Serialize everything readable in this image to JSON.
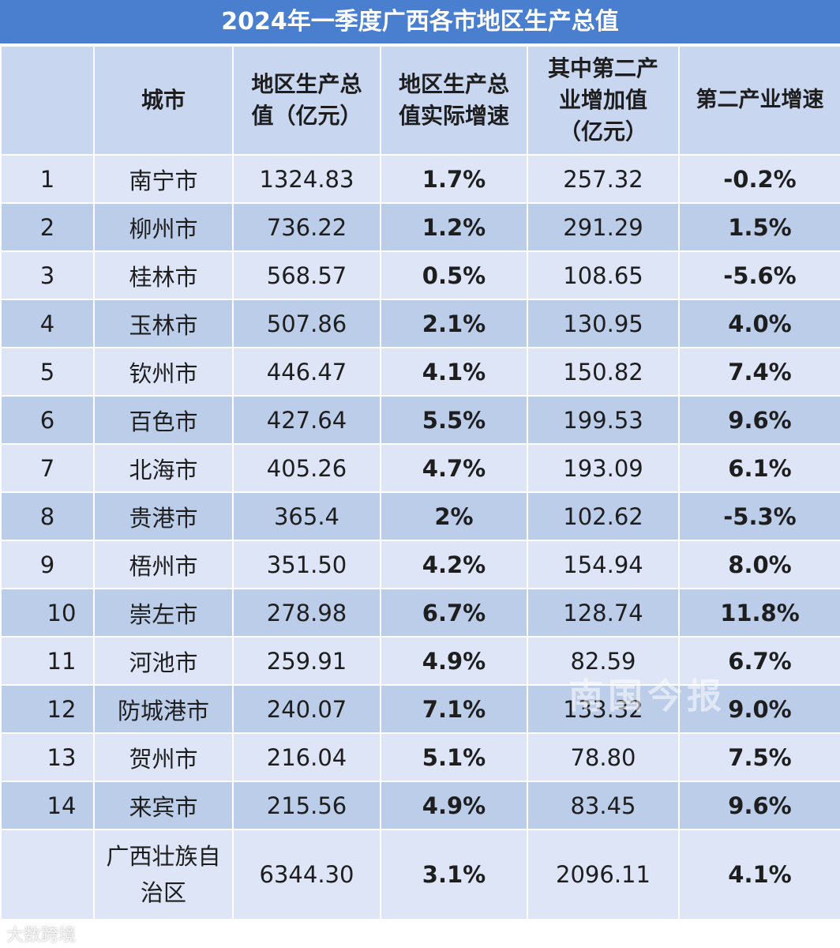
{
  "title": "2024年一季度广西各市地区生产总值",
  "headers": {
    "rank": "",
    "city": "城市",
    "gdp": "地区生产总值（亿元）",
    "gdp_growth": "地区生产总值实际增速",
    "secondary": "其中第二产业增加值（亿元）",
    "secondary_growth": "第二产业增速"
  },
  "rows": [
    {
      "rank": "1",
      "city": "南宁市",
      "gdp": "1324.83",
      "gdp_growth": "1.7%",
      "secondary": "257.32",
      "secondary_growth": "-0.2%"
    },
    {
      "rank": "2",
      "city": "柳州市",
      "gdp": "736.22",
      "gdp_growth": "1.2%",
      "secondary": "291.29",
      "secondary_growth": "1.5%"
    },
    {
      "rank": "3",
      "city": "桂林市",
      "gdp": "568.57",
      "gdp_growth": "0.5%",
      "secondary": "108.65",
      "secondary_growth": "-5.6%"
    },
    {
      "rank": "4",
      "city": "玉林市",
      "gdp": "507.86",
      "gdp_growth": "2.1%",
      "secondary": "130.95",
      "secondary_growth": "4.0%"
    },
    {
      "rank": "5",
      "city": "钦州市",
      "gdp": "446.47",
      "gdp_growth": "4.1%",
      "secondary": "150.82",
      "secondary_growth": "7.4%"
    },
    {
      "rank": "6",
      "city": "百色市",
      "gdp": "427.64",
      "gdp_growth": "5.5%",
      "secondary": "199.53",
      "secondary_growth": "9.6%"
    },
    {
      "rank": "7",
      "city": "北海市",
      "gdp": "405.26",
      "gdp_growth": "4.7%",
      "secondary": "193.09",
      "secondary_growth": "6.1%"
    },
    {
      "rank": "8",
      "city": "贵港市",
      "gdp": "365.4",
      "gdp_growth": "2%",
      "secondary": "102.62",
      "secondary_growth": "-5.3%"
    },
    {
      "rank": "9",
      "city": "梧州市",
      "gdp": "351.50",
      "gdp_growth": "4.2%",
      "secondary": "154.94",
      "secondary_growth": "8.0%"
    },
    {
      "rank": "10",
      "city": "崇左市",
      "gdp": "278.98",
      "gdp_growth": "6.7%",
      "secondary": "128.74",
      "secondary_growth": "11.8%"
    },
    {
      "rank": "11",
      "city": "河池市",
      "gdp": "259.91",
      "gdp_growth": "4.9%",
      "secondary": "82.59",
      "secondary_growth": "6.7%"
    },
    {
      "rank": "12",
      "city": "防城港市",
      "gdp": "240.07",
      "gdp_growth": "7.1%",
      "secondary": "133.32",
      "secondary_growth": "9.0%"
    },
    {
      "rank": "13",
      "city": "贺州市",
      "gdp": "216.04",
      "gdp_growth": "5.1%",
      "secondary": "78.80",
      "secondary_growth": "7.5%"
    },
    {
      "rank": "14",
      "city": "来宾市",
      "gdp": "215.56",
      "gdp_growth": "4.9%",
      "secondary": "83.45",
      "secondary_growth": "9.6%"
    }
  ],
  "total": {
    "rank": "",
    "city": "广西壮族自治区",
    "gdp": "6344.30",
    "gdp_growth": "3.1%",
    "secondary": "2096.11",
    "secondary_growth": "4.1%"
  },
  "colors": {
    "title_bg": "#4a7fd0",
    "header_bg": "#c8d6ef",
    "row_light": "#dde5f6",
    "row_dark": "#bccde9",
    "positive": "#e02424",
    "negative": "#2e9e4a"
  },
  "watermarks": {
    "center": "南国今报",
    "corner": "大数跨境"
  }
}
